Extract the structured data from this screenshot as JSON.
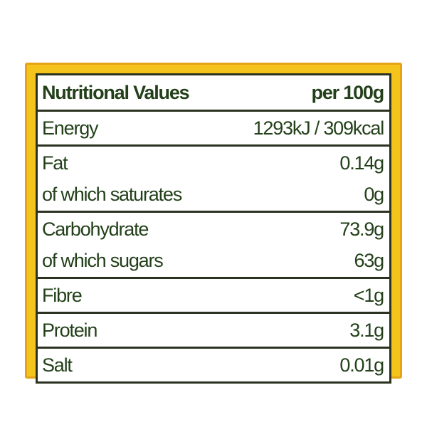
{
  "table": {
    "header": [
      "Nutritional Values",
      "per 100g"
    ],
    "groups": [
      [
        [
          "Energy",
          "1293kJ / 309kcal"
        ]
      ],
      [
        [
          "Fat",
          "0.14g"
        ],
        [
          "of which saturates",
          "0g"
        ]
      ],
      [
        [
          "Carbohydrate",
          "73.9g"
        ],
        [
          "of which sugars",
          "63g"
        ]
      ],
      [
        [
          "Fibre",
          "<1g"
        ]
      ],
      [
        [
          "Protein",
          "3.1g"
        ]
      ],
      [
        [
          "Salt",
          "0.01g"
        ]
      ]
    ]
  }
}
